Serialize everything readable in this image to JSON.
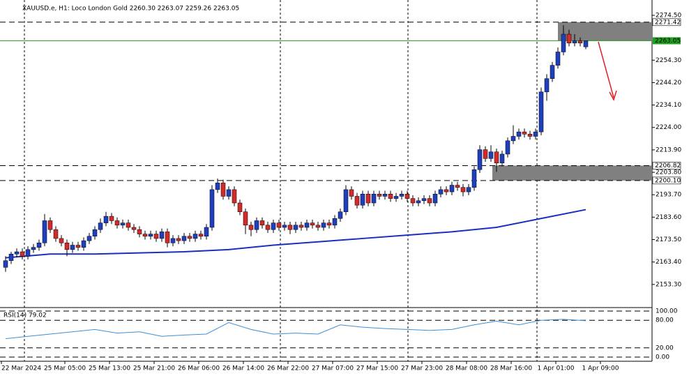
{
  "chart_data": {
    "type": "candlestick",
    "title": "XAUUSD.e, H1: Loco London Gold 2260.30 2263.07 2259.26 2263.05",
    "categories": [
      "22 Mar 2024",
      "25 Mar 05:00",
      "25 Mar 13:00",
      "25 Mar 21:00",
      "26 Mar 06:00",
      "26 Mar 14:00",
      "26 Mar 22:00",
      "27 Mar 07:00",
      "27 Mar 15:00",
      "27 Mar 23:00",
      "28 Mar 08:00",
      "28 Mar 16:00",
      "1 Apr 01:00",
      "1 Apr 09:00"
    ],
    "open": [
      2161,
      2164,
      2167,
      2168,
      2166,
      2169,
      2170,
      2172,
      2182,
      2178,
      2174,
      2172,
      2169,
      2171,
      2170,
      2173,
      2175,
      2178,
      2181,
      2184,
      2182,
      2180,
      2181,
      2179,
      2178,
      2176,
      2175,
      2176,
      2174,
      2177,
      2172,
      2174,
      2173,
      2175,
      2174,
      2176,
      2175,
      2179,
      2196,
      2199,
      2193,
      2196,
      2190,
      2186,
      2180,
      2178,
      2182,
      2180,
      2178,
      2181,
      2179,
      2180,
      2178,
      2180,
      2179,
      2181,
      2180,
      2179,
      2181,
      2180,
      2183,
      2186,
      2196,
      2193,
      2189,
      2194,
      2190,
      2194,
      2193,
      2194,
      2192,
      2193,
      2194,
      2192,
      2190,
      2191,
      2192,
      2190,
      2194,
      2196,
      2195,
      2198,
      2197,
      2195,
      2197,
      2205,
      2214,
      2210,
      2213,
      2208,
      2212,
      2218,
      2220,
      2222,
      2221,
      2220,
      2222,
      2240,
      2246,
      2252,
      2258,
      2266,
      2262,
      2263,
      2260.3
    ],
    "high": [
      2166,
      2168,
      2169.5,
      2169.5,
      2170.5,
      2171.5,
      2173.5,
      2185,
      2183.5,
      2179.5,
      2175.5,
      2173.5,
      2172.5,
      2172.5,
      2174.5,
      2176.5,
      2179.5,
      2183,
      2186,
      2185.5,
      2183.5,
      2182.5,
      2182.5,
      2180.5,
      2179.5,
      2177.5,
      2177.5,
      2177.5,
      2178.5,
      2178.5,
      2175.5,
      2175.5,
      2176.5,
      2176.5,
      2177.5,
      2177.5,
      2180.5,
      2198,
      2201,
      2200.5,
      2197.5,
      2197.5,
      2191.5,
      2187.5,
      2181.5,
      2183.5,
      2183.5,
      2181.5,
      2182.5,
      2182.5,
      2181.5,
      2181.5,
      2181.5,
      2181.5,
      2182.5,
      2182.5,
      2181.5,
      2182.5,
      2182.5,
      2184.5,
      2187.5,
      2198,
      2197.5,
      2194.5,
      2195.5,
      2195.5,
      2195.5,
      2195.5,
      2195.5,
      2195.5,
      2194.5,
      2195.5,
      2195.5,
      2193.5,
      2192.5,
      2193.5,
      2193.5,
      2195.5,
      2197.5,
      2197.5,
      2199.5,
      2199.5,
      2198.5,
      2198.5,
      2206.5,
      2216,
      2215.5,
      2216,
      2214.5,
      2213.5,
      2219.5,
      2225,
      2223.5,
      2223.5,
      2222.5,
      2223.5,
      2242,
      2248,
      2253.5,
      2260,
      2270,
      2268,
      2266,
      2264.5,
      2263.07
    ],
    "low": [
      2159,
      2162.5,
      2165.5,
      2164.5,
      2164.5,
      2167.5,
      2168.5,
      2170.5,
      2176.5,
      2172.5,
      2170.5,
      2166,
      2167.5,
      2168.5,
      2168.5,
      2171.5,
      2173.5,
      2176.5,
      2179.5,
      2180.5,
      2178.5,
      2178.5,
      2177.5,
      2176.5,
      2174.5,
      2173.5,
      2173.5,
      2172.5,
      2172.5,
      2170,
      2170.5,
      2171.5,
      2171.5,
      2172.5,
      2172.5,
      2173.5,
      2173.5,
      2177.5,
      2194.5,
      2191.5,
      2191.5,
      2188.5,
      2184.5,
      2176,
      2175,
      2176.5,
      2178.5,
      2176.5,
      2176.5,
      2177.5,
      2177.5,
      2176,
      2176.5,
      2177.5,
      2177.5,
      2178.5,
      2177.5,
      2177.5,
      2178.5,
      2178.5,
      2181.5,
      2184.5,
      2191.5,
      2187.5,
      2187.5,
      2188.5,
      2188.5,
      2191.5,
      2191.5,
      2190.5,
      2190.5,
      2191.5,
      2190.5,
      2188.5,
      2188.5,
      2189.5,
      2188.5,
      2188.5,
      2192.5,
      2193.5,
      2193.5,
      2195.5,
      2193,
      2193.5,
      2195.5,
      2203.5,
      2208.5,
      2208.5,
      2204,
      2206.5,
      2210.5,
      2216.5,
      2218.5,
      2219.5,
      2218.5,
      2218.5,
      2220.5,
      2236,
      2244.5,
      2250.5,
      2256.5,
      2260.5,
      2260.5,
      2260.5,
      2259.26
    ],
    "close": [
      2164,
      2167,
      2168,
      2166,
      2169,
      2170,
      2172,
      2182,
      2178,
      2174,
      2172,
      2169,
      2171,
      2170,
      2173,
      2175,
      2178,
      2181,
      2184,
      2182,
      2180,
      2181,
      2179,
      2178,
      2176,
      2175,
      2176,
      2174,
      2177,
      2172,
      2174,
      2173,
      2175,
      2174,
      2176,
      2175,
      2179,
      2196,
      2199,
      2193,
      2196,
      2190,
      2186,
      2180,
      2178,
      2182,
      2180,
      2178,
      2181,
      2179,
      2180,
      2178,
      2180,
      2179,
      2181,
      2180,
      2179,
      2181,
      2180,
      2183,
      2186,
      2196,
      2193,
      2189,
      2194,
      2190,
      2194,
      2193,
      2194,
      2192,
      2193,
      2194,
      2192,
      2190,
      2191,
      2192,
      2190,
      2194,
      2196,
      2195,
      2198,
      2197,
      2195,
      2197,
      2205,
      2214,
      2210,
      2213,
      2208,
      2212,
      2218,
      2220,
      2222,
      2221,
      2220,
      2222,
      2240,
      2246,
      2252,
      2258,
      2266,
      2262,
      2263,
      2262,
      2263.05
    ],
    "up_color": "#1f3fbf",
    "down_color": "#d42a2a",
    "ma": {
      "color": "#1a2fbf",
      "x": [
        0,
        8,
        16,
        24,
        32,
        40,
        48,
        56,
        64,
        72,
        80,
        88,
        96,
        104
      ],
      "values": [
        2165.3,
        2167,
        2167,
        2167.5,
        2168,
        2169,
        2171,
        2172.5,
        2174,
        2175.5,
        2177,
        2179,
        2183,
        2187
      ]
    },
    "ylim": [
      2143.2,
      2281.4
    ],
    "yticks": [
      {
        "value": 2153.3,
        "label": "2153.30"
      },
      {
        "value": 2163.4,
        "label": "2163.40"
      },
      {
        "value": 2173.5,
        "label": "2173.50"
      },
      {
        "value": 2183.6,
        "label": "2183.60"
      },
      {
        "value": 2193.7,
        "label": "2193.70"
      },
      {
        "value": 2203.8,
        "label": "2203.80"
      },
      {
        "value": 2213.9,
        "label": "2213.90"
      },
      {
        "value": 2224,
        "label": "2224.00"
      },
      {
        "value": 2234.1,
        "label": "2234.10"
      },
      {
        "value": 2244.2,
        "label": "2244.20"
      },
      {
        "value": 2254.3,
        "label": "2254.30"
      },
      {
        "value": 2274.5,
        "label": "2274.50"
      }
    ],
    "levels": [
      2271.42,
      2206.82,
      {
        "value": 2200.1,
        "label": "2200.10"
      }
    ],
    "current_price": 2263.05,
    "zones": [
      {
        "low": 2263.05,
        "high": 2271.42
      },
      {
        "low": {
          "value": 2200.1
        },
        "high": 2206.82
      }
    ],
    "rsi": {
      "label": "RSI(14) 79.02",
      "color": "#3a8fd8",
      "x": [
        0,
        4,
        8,
        12,
        16,
        20,
        24,
        28,
        32,
        36,
        40,
        44,
        48,
        52,
        56,
        60,
        64,
        68,
        72,
        76,
        80,
        84,
        88,
        92,
        96,
        100,
        104
      ],
      "values": [
        40,
        45,
        50,
        55,
        60,
        52,
        55,
        45,
        48,
        50,
        75,
        60,
        50,
        52,
        50,
        70,
        65,
        62,
        60,
        58,
        60,
        70,
        78,
        70,
        80,
        82,
        79.02
      ],
      "ylim": [
        0,
        100
      ],
      "yticks": [
        {
          "value": 0,
          "label": "0.00"
        },
        {
          "value": 20,
          "label": "20.00"
        },
        {
          "value": 80,
          "label": "80.00"
        },
        {
          "value": 100,
          "label": "100.00"
        }
      ]
    }
  }
}
